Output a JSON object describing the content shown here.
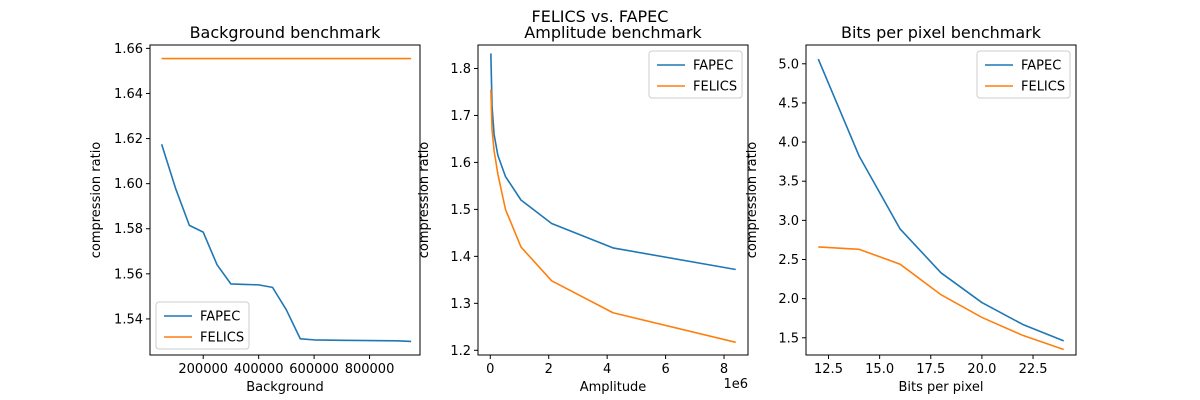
{
  "figure": {
    "suptitle": "FELICS vs. FAPEC"
  },
  "colors": {
    "FAPEC": "#1f77b4",
    "FELICS": "#ff7f0e"
  },
  "chart_data": [
    {
      "type": "line",
      "title": "Background benchmark",
      "xlabel": "Background",
      "ylabel": "compression ratio",
      "xlim": [
        8000,
        982000
      ],
      "ylim": [
        1.524,
        1.6615
      ],
      "x_ticks": [
        200000,
        400000,
        600000,
        800000
      ],
      "x_tick_labels": [
        "200000",
        "400000",
        "600000",
        "800000"
      ],
      "y_ticks": [
        1.54,
        1.56,
        1.58,
        1.6,
        1.62,
        1.64,
        1.66
      ],
      "y_tick_labels": [
        "1.54",
        "1.56",
        "1.58",
        "1.60",
        "1.62",
        "1.64",
        "1.66"
      ],
      "x_offset_label": "",
      "legend": "lower-left",
      "grid": false,
      "series": [
        {
          "name": "FAPEC",
          "x": [
            50000,
            100000,
            150000,
            200000,
            250000,
            300000,
            350000,
            400000,
            450000,
            500000,
            550000,
            600000,
            700000,
            800000,
            900000,
            950000
          ],
          "values": [
            1.6175,
            1.598,
            1.5815,
            1.5785,
            1.564,
            1.5555,
            1.5553,
            1.5551,
            1.554,
            1.544,
            1.5312,
            1.5307,
            1.5305,
            1.5304,
            1.5303,
            1.53
          ]
        },
        {
          "name": "FELICS",
          "x": [
            50000,
            950000
          ],
          "values": [
            1.6555,
            1.6555
          ]
        }
      ]
    },
    {
      "type": "line",
      "title": "Amplitude benchmark",
      "xlabel": "Amplitude",
      "ylabel": "compression ratio",
      "xlim": [
        -420000,
        8820000
      ],
      "ylim": [
        1.19,
        1.85
      ],
      "x_ticks": [
        0,
        2000000,
        4000000,
        6000000,
        8000000
      ],
      "x_tick_labels": [
        "0",
        "2",
        "4",
        "6",
        "8"
      ],
      "y_ticks": [
        1.2,
        1.3,
        1.4,
        1.5,
        1.6,
        1.7,
        1.8
      ],
      "y_tick_labels": [
        "1.2",
        "1.3",
        "1.4",
        "1.5",
        "1.6",
        "1.7",
        "1.8"
      ],
      "x_offset_label": "1e6",
      "legend": "upper-right",
      "grid": false,
      "series": [
        {
          "name": "FAPEC",
          "x": [
            20000,
            60000,
            130000,
            260000,
            520000,
            1050000,
            2100000,
            4200000,
            8400000
          ],
          "values": [
            1.832,
            1.72,
            1.66,
            1.615,
            1.57,
            1.52,
            1.47,
            1.418,
            1.372
          ]
        },
        {
          "name": "FELICS",
          "x": [
            20000,
            60000,
            130000,
            260000,
            520000,
            1050000,
            2100000,
            4200000,
            8400000
          ],
          "values": [
            1.755,
            1.67,
            1.625,
            1.575,
            1.5,
            1.42,
            1.348,
            1.28,
            1.217
          ]
        }
      ]
    },
    {
      "type": "line",
      "title": "Bits per pixel benchmark",
      "xlabel": "Bits per pixel",
      "ylabel": "compression ratio",
      "xlim": [
        11.4,
        24.6
      ],
      "ylim": [
        1.28,
        5.24
      ],
      "x_ticks": [
        12.5,
        15.0,
        17.5,
        20.0,
        22.5
      ],
      "x_tick_labels": [
        "12.5",
        "15.0",
        "17.5",
        "20.0",
        "22.5"
      ],
      "y_ticks": [
        1.5,
        2.0,
        2.5,
        3.0,
        3.5,
        4.0,
        4.5,
        5.0
      ],
      "y_tick_labels": [
        "1.5",
        "2.0",
        "2.5",
        "3.0",
        "3.5",
        "4.0",
        "4.5",
        "5.0"
      ],
      "x_offset_label": "",
      "legend": "upper-right",
      "grid": false,
      "series": [
        {
          "name": "FAPEC",
          "x": [
            12,
            14,
            16,
            18,
            20,
            22,
            24
          ],
          "values": [
            5.06,
            3.82,
            2.89,
            2.33,
            1.95,
            1.67,
            1.46
          ]
        },
        {
          "name": "FELICS",
          "x": [
            12,
            14,
            16,
            18,
            20,
            22,
            24
          ],
          "values": [
            2.66,
            2.63,
            2.44,
            2.05,
            1.76,
            1.53,
            1.35
          ]
        }
      ]
    }
  ]
}
